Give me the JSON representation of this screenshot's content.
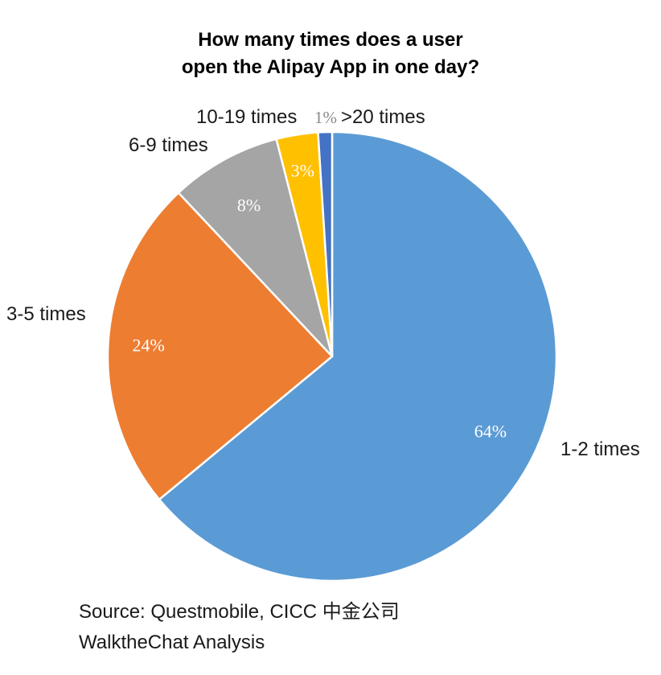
{
  "chart_data": {
    "type": "pie",
    "title_lines": [
      "How many times does a user",
      "open the Alipay App in one day?"
    ],
    "start_angle": "12 o'clock",
    "direction": "clockwise",
    "slices": [
      {
        "label": "1-2 times",
        "value": 64,
        "value_label": "64%",
        "color": "#5b9bd5"
      },
      {
        "label": "3-5 times",
        "value": 24,
        "value_label": "24%",
        "color": "#ed7d31"
      },
      {
        "label": "6-9 times",
        "value": 8,
        "value_label": "8%",
        "color": "#a5a5a5"
      },
      {
        "label": "10-19 times",
        "value": 3,
        "value_label": "3%",
        "color": "#ffc000"
      },
      {
        "label": ">20 times",
        "value": 1,
        "value_label": "1%",
        "color": "#4472c4"
      }
    ]
  },
  "source": {
    "line1": "Source: Questmobile, CICC 中金公司",
    "line2": "WalktheChat Analysis"
  }
}
